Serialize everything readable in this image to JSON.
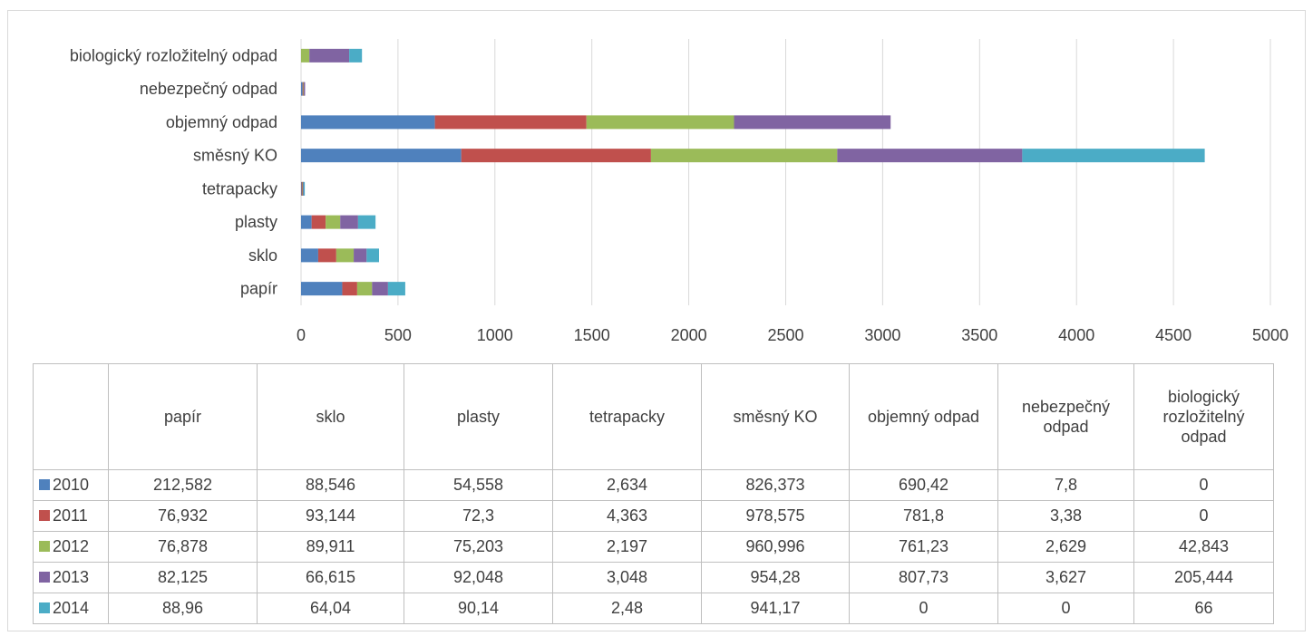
{
  "chart_data": {
    "type": "bar",
    "orientation": "horizontal",
    "stacked": true,
    "categories": [
      "papír",
      "sklo",
      "plasty",
      "tetrapacky",
      "směsný KO",
      "objemný odpad",
      "nebezpečný odpad",
      "biologický rozložitelný odpad"
    ],
    "series": [
      {
        "name": "2010",
        "color": "#4f81bd",
        "values": [
          212.582,
          88.546,
          54.558,
          2.634,
          826.373,
          690.42,
          7.8,
          0
        ]
      },
      {
        "name": "2011",
        "color": "#c0504d",
        "values": [
          76.932,
          93.144,
          72.3,
          4.363,
          978.575,
          781.8,
          3.38,
          0
        ]
      },
      {
        "name": "2012",
        "color": "#9bbb59",
        "values": [
          76.878,
          89.911,
          75.203,
          2.197,
          960.996,
          761.23,
          2.629,
          42.843
        ]
      },
      {
        "name": "2013",
        "color": "#8064a2",
        "values": [
          82.125,
          66.615,
          92.048,
          3.048,
          954.28,
          807.73,
          3.627,
          205.444
        ]
      },
      {
        "name": "2014",
        "color": "#4bacc6",
        "values": [
          88.96,
          64.04,
          90.14,
          2.48,
          941.17,
          0,
          0,
          66
        ]
      }
    ],
    "xlim": [
      0,
      5000
    ],
    "xticks": [
      "0",
      "500",
      "1000",
      "1500",
      "2000",
      "2500",
      "3000",
      "3500",
      "4000",
      "4500",
      "5000"
    ],
    "grid": "vertical",
    "legend": "data-table",
    "table": {
      "headers": [
        "papír",
        "sklo",
        "plasty",
        "tetrapacky",
        "směsný KO",
        "objemný odpad",
        "nebezpečný odpad",
        "biologický rozložitelný odpad"
      ],
      "rows": [
        {
          "label": "2010",
          "cells": [
            "212,582",
            "88,546",
            "54,558",
            "2,634",
            "826,373",
            "690,42",
            "7,8",
            "0"
          ]
        },
        {
          "label": "2011",
          "cells": [
            "76,932",
            "93,144",
            "72,3",
            "4,363",
            "978,575",
            "781,8",
            "3,38",
            "0"
          ]
        },
        {
          "label": "2012",
          "cells": [
            "76,878",
            "89,911",
            "75,203",
            "2,197",
            "960,996",
            "761,23",
            "2,629",
            "42,843"
          ]
        },
        {
          "label": "2013",
          "cells": [
            "82,125",
            "66,615",
            "92,048",
            "3,048",
            "954,28",
            "807,73",
            "3,627",
            "205,444"
          ]
        },
        {
          "label": "2014",
          "cells": [
            "88,96",
            "64,04",
            "90,14",
            "2,48",
            "941,17",
            "0",
            "0",
            "66"
          ]
        }
      ]
    }
  }
}
